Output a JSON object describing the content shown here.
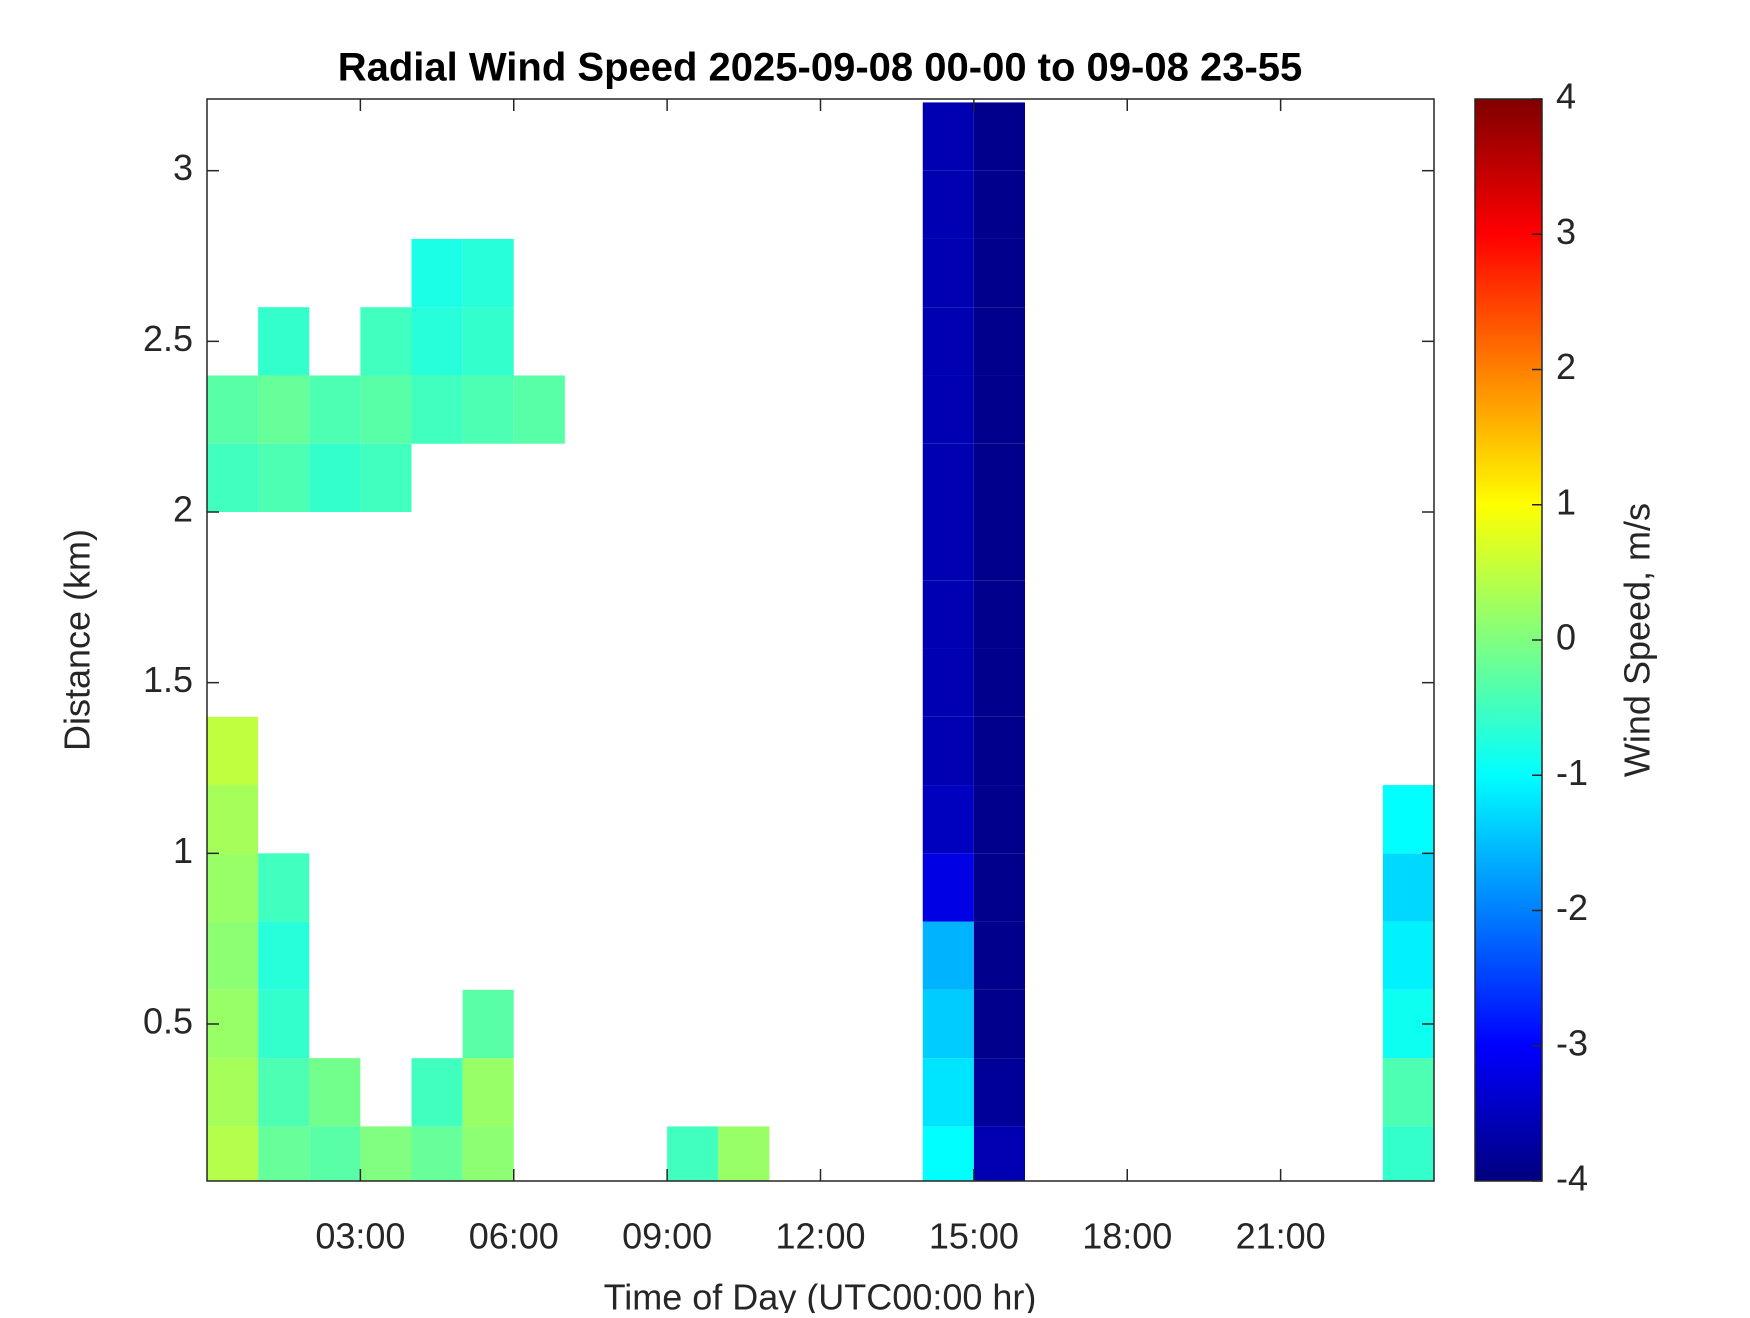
{
  "chart_data": {
    "type": "heatmap",
    "title": "Radial Wind Speed 2025-09-08 00-00 to 09-08 23-55",
    "xlabel": "Time of Day (UTC00:00 hr)",
    "ylabel": "Distance (km)",
    "colorbar_label": "Wind Speed, m/s",
    "colormap": "jet",
    "x": [
      0.5,
      1.5,
      2.5,
      3.5,
      4.5,
      5.5,
      6.5,
      7.5,
      8.5,
      9.5,
      10.5,
      11.5,
      12.5,
      13.5,
      14.5,
      15.5,
      16.5,
      17.5,
      18.5,
      19.5,
      20.5,
      21.5,
      22.5,
      23.5
    ],
    "y": [
      0.1,
      0.3,
      0.5,
      0.7,
      0.9,
      1.1,
      1.3,
      1.5,
      1.7,
      1.9,
      2.1,
      2.3,
      2.5,
      2.7,
      2.9,
      3.1
    ],
    "values": [
      [
        0.4,
        -0.2,
        -0.3,
        0,
        -0.2,
        0.1,
        null,
        null,
        null,
        -0.5,
        0.2,
        null,
        null,
        null,
        -1.0,
        -3.6,
        null,
        null,
        null,
        null,
        null,
        null,
        null,
        -0.6
      ],
      [
        0.3,
        -0.4,
        -0.1,
        null,
        -0.5,
        0.2,
        null,
        null,
        null,
        null,
        null,
        null,
        null,
        null,
        -1.2,
        -3.8,
        null,
        null,
        null,
        null,
        null,
        null,
        null,
        -0.4
      ],
      [
        0.2,
        -0.6,
        null,
        null,
        null,
        -0.3,
        null,
        null,
        null,
        null,
        null,
        null,
        null,
        null,
        -1.4,
        -3.9,
        null,
        null,
        null,
        null,
        null,
        null,
        null,
        -0.9
      ],
      [
        0.1,
        -0.7,
        null,
        null,
        null,
        null,
        null,
        null,
        null,
        null,
        null,
        null,
        null,
        null,
        -1.6,
        -3.9,
        null,
        null,
        null,
        null,
        null,
        null,
        null,
        -1.1
      ],
      [
        0.2,
        -0.5,
        null,
        null,
        null,
        null,
        null,
        null,
        null,
        null,
        null,
        null,
        null,
        null,
        -3.2,
        -3.9,
        null,
        null,
        null,
        null,
        null,
        null,
        null,
        -1.3
      ],
      [
        0.3,
        null,
        null,
        null,
        null,
        null,
        null,
        null,
        null,
        null,
        null,
        null,
        null,
        null,
        -3.5,
        -3.9,
        null,
        null,
        null,
        null,
        null,
        null,
        null,
        -1.0
      ],
      [
        0.5,
        null,
        null,
        null,
        null,
        null,
        null,
        null,
        null,
        null,
        null,
        null,
        null,
        null,
        -3.6,
        -3.9,
        null,
        null,
        null,
        null,
        null,
        null,
        null,
        null
      ],
      [
        null,
        null,
        null,
        null,
        null,
        null,
        null,
        null,
        null,
        null,
        null,
        null,
        null,
        null,
        -3.6,
        -3.9,
        null,
        null,
        null,
        null,
        null,
        null,
        null,
        null
      ],
      [
        null,
        null,
        null,
        null,
        null,
        null,
        null,
        null,
        null,
        null,
        null,
        null,
        null,
        null,
        -3.6,
        -3.9,
        null,
        null,
        null,
        null,
        null,
        null,
        null,
        null
      ],
      [
        null,
        null,
        null,
        null,
        null,
        null,
        null,
        null,
        null,
        null,
        null,
        null,
        null,
        null,
        -3.6,
        -3.9,
        null,
        null,
        null,
        null,
        null,
        null,
        null,
        null
      ],
      [
        -0.5,
        -0.4,
        -0.6,
        -0.5,
        null,
        null,
        null,
        null,
        null,
        null,
        null,
        null,
        null,
        null,
        -3.6,
        -3.9,
        null,
        null,
        null,
        null,
        null,
        null,
        null,
        null
      ],
      [
        -0.3,
        -0.2,
        -0.4,
        -0.3,
        -0.5,
        -0.4,
        -0.3,
        null,
        null,
        null,
        null,
        null,
        null,
        null,
        -3.6,
        -3.9,
        null,
        null,
        null,
        null,
        null,
        null,
        null,
        null
      ],
      [
        null,
        -0.6,
        null,
        -0.5,
        -0.7,
        -0.6,
        null,
        null,
        null,
        null,
        null,
        null,
        null,
        null,
        -3.6,
        -3.9,
        null,
        null,
        null,
        null,
        null,
        null,
        null,
        null
      ],
      [
        null,
        null,
        null,
        null,
        -0.8,
        -0.7,
        null,
        null,
        null,
        null,
        null,
        null,
        null,
        null,
        -3.6,
        -3.9,
        null,
        null,
        null,
        null,
        null,
        null,
        null,
        null
      ],
      [
        null,
        null,
        null,
        null,
        null,
        null,
        null,
        null,
        null,
        null,
        null,
        null,
        null,
        null,
        -3.6,
        -3.9,
        null,
        null,
        null,
        null,
        null,
        null,
        null,
        null
      ],
      [
        null,
        null,
        null,
        null,
        null,
        null,
        null,
        null,
        null,
        null,
        null,
        null,
        null,
        null,
        -3.6,
        -3.9,
        null,
        null,
        null,
        null,
        null,
        null,
        null,
        null
      ]
    ],
    "xlim": [
      0,
      24
    ],
    "xticks": [
      {
        "value": 3,
        "label": "03:00"
      },
      {
        "value": 6,
        "label": "06:00"
      },
      {
        "value": 9,
        "label": "09:00"
      },
      {
        "value": 12,
        "label": "12:00"
      },
      {
        "value": 15,
        "label": "15:00"
      },
      {
        "value": 18,
        "label": "18:00"
      },
      {
        "value": 21,
        "label": "21:00"
      }
    ],
    "ylim": [
      0.04,
      3.21
    ],
    "yticks": [
      0.5,
      1,
      1.5,
      2,
      2.5,
      3
    ],
    "clim": [
      -4,
      4
    ],
    "cticks": [
      -4,
      -3,
      -2,
      -1,
      0,
      1,
      2,
      3,
      4
    ],
    "grid": false
  }
}
